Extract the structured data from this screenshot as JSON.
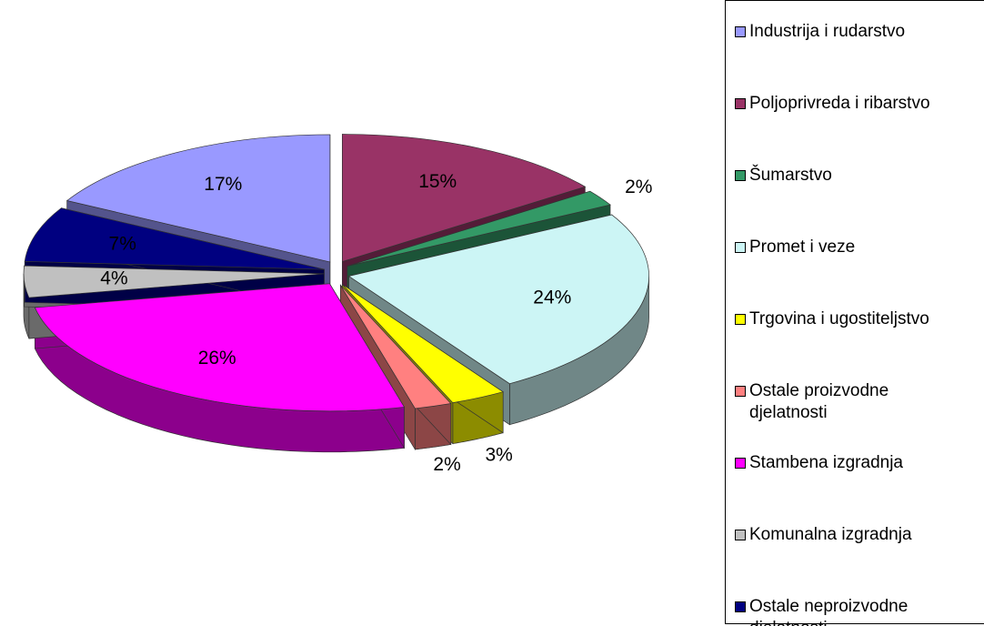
{
  "chart_data": {
    "type": "pie",
    "categories": [
      "Industrija i rudarstvo",
      "Poljoprivreda i ribarstvo",
      "Šumarstvo",
      "Promet i veze",
      "Trgovina i ugostiteljstvo",
      "Ostale proizvodne djelatnosti",
      "Stambena izgradnja",
      "Komunalna izgradnja",
      "Ostale neproizvodne djelatnosti"
    ],
    "values": [
      17,
      15,
      2,
      24,
      3,
      2,
      26,
      4,
      7
    ],
    "value_labels": [
      "17%",
      "15%",
      "2%",
      "24%",
      "3%",
      "2%",
      "26%",
      "4%",
      "7%"
    ],
    "colors": [
      "#9999ff",
      "#993366",
      "#339966",
      "#ccf5f5",
      "#ffff00",
      "#ff8080",
      "#ff00ff",
      "#c0c0c0",
      "#000080"
    ],
    "legend": "right"
  }
}
